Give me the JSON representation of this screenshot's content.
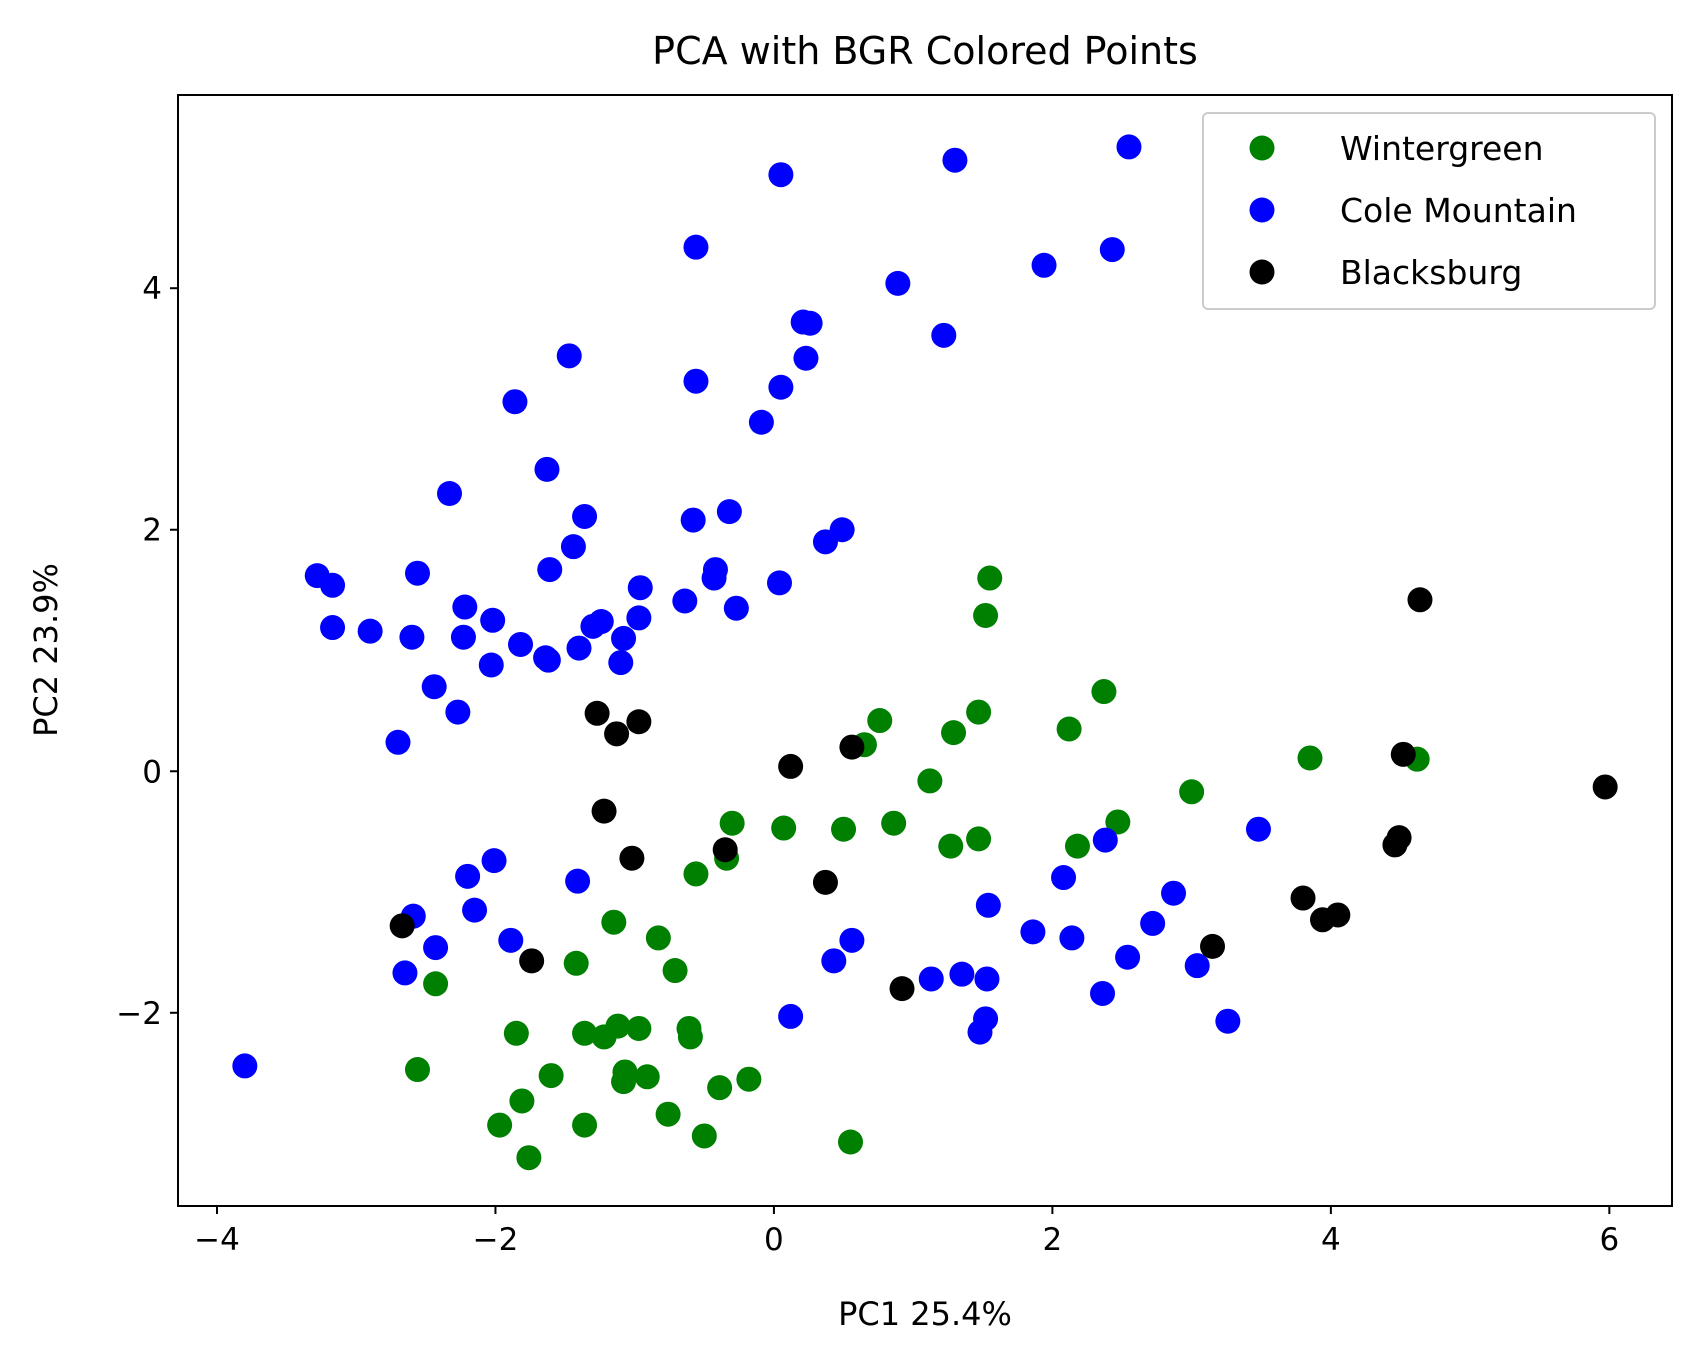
{
  "chart_data": {
    "type": "scatter",
    "title": "PCA with BGR Colored Points",
    "xlabel": "PC1 25.4%",
    "ylabel": "PC2 23.9%",
    "xlim": [
      -4.28,
      6.45
    ],
    "ylim": [
      -3.6,
      5.6
    ],
    "x_ticks": [
      -4,
      -2,
      0,
      2,
      4,
      6
    ],
    "y_ticks": [
      -2,
      0,
      2,
      4
    ],
    "grid": false,
    "legend_position": "top-right",
    "series": [
      {
        "name": "Wintergreen",
        "color": "#008000",
        "points": [
          [
            1.55,
            1.6
          ],
          [
            1.52,
            1.29
          ],
          [
            2.37,
            0.66
          ],
          [
            2.12,
            0.35
          ],
          [
            1.47,
            0.49
          ],
          [
            1.29,
            0.32
          ],
          [
            0.76,
            0.42
          ],
          [
            0.65,
            0.22
          ],
          [
            1.12,
            -0.08
          ],
          [
            3.0,
            -0.17
          ],
          [
            3.85,
            0.11
          ],
          [
            4.62,
            0.1
          ],
          [
            2.47,
            -0.42
          ],
          [
            2.18,
            -0.62
          ],
          [
            1.47,
            -0.56
          ],
          [
            1.27,
            -0.62
          ],
          [
            0.86,
            -0.43
          ],
          [
            0.5,
            -0.48
          ],
          [
            0.07,
            -0.47
          ],
          [
            -0.3,
            -0.43
          ],
          [
            -0.34,
            -0.72
          ],
          [
            -0.56,
            -0.85
          ],
          [
            -1.15,
            -1.25
          ],
          [
            -0.83,
            -1.38
          ],
          [
            -0.71,
            -1.65
          ],
          [
            -1.42,
            -1.59
          ],
          [
            -2.43,
            -1.76
          ],
          [
            -1.85,
            -2.17
          ],
          [
            -1.36,
            -2.17
          ],
          [
            -1.22,
            -2.2
          ],
          [
            -1.12,
            -2.11
          ],
          [
            -0.97,
            -2.13
          ],
          [
            -0.61,
            -2.13
          ],
          [
            -0.6,
            -2.2
          ],
          [
            -2.56,
            -2.47
          ],
          [
            -1.6,
            -2.52
          ],
          [
            -1.07,
            -2.49
          ],
          [
            -1.08,
            -2.57
          ],
          [
            -0.91,
            -2.53
          ],
          [
            -0.39,
            -2.62
          ],
          [
            -0.18,
            -2.55
          ],
          [
            -1.81,
            -2.73
          ],
          [
            -0.76,
            -2.84
          ],
          [
            -1.97,
            -2.93
          ],
          [
            -1.36,
            -2.93
          ],
          [
            -0.5,
            -3.02
          ],
          [
            -1.76,
            -3.2
          ],
          [
            0.55,
            -3.07
          ]
        ]
      },
      {
        "name": "Cole Mountain",
        "color": "#0000ff",
        "points": [
          [
            2.55,
            5.17
          ],
          [
            0.05,
            4.94
          ],
          [
            1.3,
            5.06
          ],
          [
            -0.56,
            4.34
          ],
          [
            2.43,
            4.32
          ],
          [
            1.94,
            4.19
          ],
          [
            0.89,
            4.04
          ],
          [
            0.21,
            3.72
          ],
          [
            0.26,
            3.71
          ],
          [
            1.22,
            3.61
          ],
          [
            -1.47,
            3.44
          ],
          [
            0.23,
            3.42
          ],
          [
            -0.56,
            3.23
          ],
          [
            0.05,
            3.18
          ],
          [
            -1.86,
            3.06
          ],
          [
            -0.09,
            2.89
          ],
          [
            -1.63,
            2.5
          ],
          [
            -2.33,
            2.3
          ],
          [
            -0.32,
            2.15
          ],
          [
            -1.36,
            2.11
          ],
          [
            -0.58,
            2.08
          ],
          [
            0.49,
            2.0
          ],
          [
            0.37,
            1.9
          ],
          [
            -1.44,
            1.86
          ],
          [
            -1.61,
            1.67
          ],
          [
            -0.42,
            1.67
          ],
          [
            -0.43,
            1.6
          ],
          [
            -3.28,
            1.62
          ],
          [
            -3.17,
            1.54
          ],
          [
            0.04,
            1.56
          ],
          [
            -0.96,
            1.52
          ],
          [
            -2.56,
            1.64
          ],
          [
            -0.64,
            1.41
          ],
          [
            -0.27,
            1.35
          ],
          [
            -2.22,
            1.36
          ],
          [
            -1.24,
            1.24
          ],
          [
            -1.3,
            1.2
          ],
          [
            -0.97,
            1.27
          ],
          [
            -2.02,
            1.25
          ],
          [
            -3.17,
            1.19
          ],
          [
            -2.9,
            1.16
          ],
          [
            -2.6,
            1.11
          ],
          [
            -2.23,
            1.11
          ],
          [
            -1.08,
            1.1
          ],
          [
            -1.82,
            1.05
          ],
          [
            -1.64,
            0.94
          ],
          [
            -1.4,
            1.02
          ],
          [
            -1.62,
            0.92
          ],
          [
            -1.1,
            0.9
          ],
          [
            -2.03,
            0.88
          ],
          [
            -2.44,
            0.7
          ],
          [
            -2.27,
            0.49
          ],
          [
            -2.7,
            0.24
          ],
          [
            2.38,
            -0.57
          ],
          [
            3.48,
            -0.48
          ],
          [
            -2.01,
            -0.74
          ],
          [
            -2.2,
            -0.87
          ],
          [
            -1.41,
            -0.91
          ],
          [
            2.08,
            -0.88
          ],
          [
            -2.15,
            -1.15
          ],
          [
            1.54,
            -1.11
          ],
          [
            -2.59,
            -1.2
          ],
          [
            2.87,
            -1.01
          ],
          [
            2.72,
            -1.26
          ],
          [
            1.86,
            -1.33
          ],
          [
            2.14,
            -1.38
          ],
          [
            -1.89,
            -1.4
          ],
          [
            0.56,
            -1.4
          ],
          [
            -2.43,
            -1.46
          ],
          [
            0.43,
            -1.57
          ],
          [
            2.54,
            -1.54
          ],
          [
            3.04,
            -1.61
          ],
          [
            -2.65,
            -1.67
          ],
          [
            1.35,
            -1.68
          ],
          [
            1.13,
            -1.72
          ],
          [
            1.53,
            -1.72
          ],
          [
            2.36,
            -1.84
          ],
          [
            0.12,
            -2.03
          ],
          [
            1.52,
            -2.05
          ],
          [
            3.26,
            -2.07
          ],
          [
            1.48,
            -2.16
          ],
          [
            -3.8,
            -2.44
          ]
        ]
      },
      {
        "name": "Blacksburg",
        "color": "#000000",
        "points": [
          [
            4.64,
            1.42
          ],
          [
            -1.27,
            0.48
          ],
          [
            -0.97,
            0.41
          ],
          [
            -1.13,
            0.31
          ],
          [
            0.12,
            0.04
          ],
          [
            0.56,
            0.2
          ],
          [
            4.52,
            0.14
          ],
          [
            5.97,
            -0.13
          ],
          [
            -1.22,
            -0.33
          ],
          [
            -0.35,
            -0.65
          ],
          [
            -1.02,
            -0.72
          ],
          [
            4.46,
            -0.61
          ],
          [
            4.49,
            -0.55
          ],
          [
            0.37,
            -0.92
          ],
          [
            3.8,
            -1.05
          ],
          [
            3.94,
            -1.23
          ],
          [
            4.05,
            -1.19
          ],
          [
            -2.67,
            -1.28
          ],
          [
            3.15,
            -1.45
          ],
          [
            -1.74,
            -1.57
          ],
          [
            0.92,
            -1.8
          ]
        ]
      }
    ]
  }
}
